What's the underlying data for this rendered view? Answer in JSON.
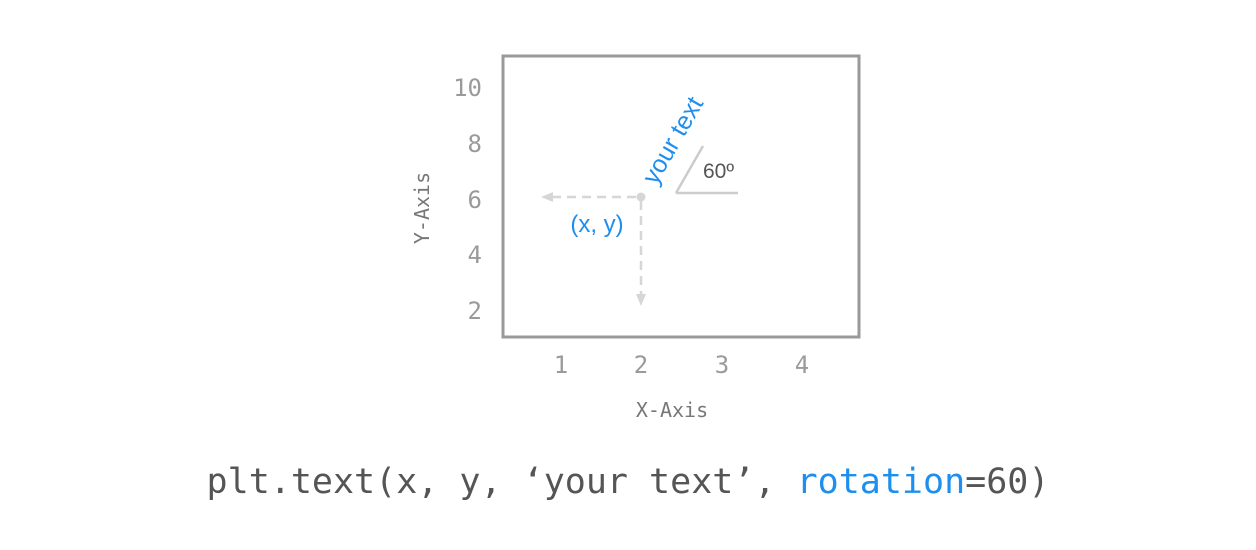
{
  "diagram": {
    "y_ticks": [
      "10",
      "8",
      "6",
      "4",
      "2"
    ],
    "x_ticks": [
      "1",
      "2",
      "3",
      "4"
    ],
    "x_axis_label": "X-Axis",
    "y_axis_label": "Y-Axis",
    "rotated_text": "your text",
    "angle_label": "60º",
    "point_label": "(x, y)",
    "colors": {
      "accent": "#1f8fef",
      "frame": "#999999",
      "ticks": "#9a9a9a",
      "guide": "#d6d6d6",
      "angle_lines": "#cccccc"
    }
  },
  "code": {
    "prefix": "plt.text(x, y, ‘your text’, ",
    "keyword": "rotation",
    "suffix": "=60)"
  }
}
